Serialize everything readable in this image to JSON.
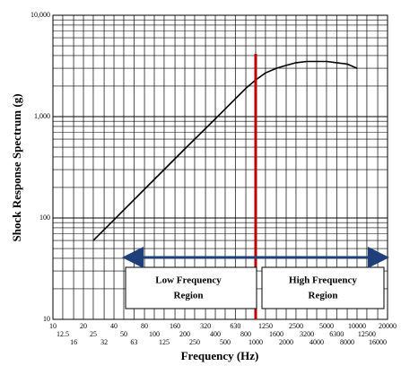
{
  "chart_data": {
    "type": "line",
    "x_label": "Frequency (Hz)",
    "y_label": "Shock Response Spectrum (g)",
    "x": [
      25,
      50,
      100,
      200,
      400,
      800,
      1000,
      1250,
      1600,
      2000,
      2500,
      3200,
      4000,
      5000,
      6300,
      8000,
      10000
    ],
    "series": [
      {
        "color": "#000000",
        "values": [
          60,
          120,
          240,
          480,
          950,
          1900,
          2300,
          2700,
          3000,
          3200,
          3400,
          3500,
          3500,
          3500,
          3400,
          3300,
          3000
        ]
      }
    ],
    "xlim": [
      10,
      20000
    ],
    "ylim": [
      10,
      10000
    ],
    "log_x": true,
    "log_y": true,
    "grid": true,
    "xticks": [
      10,
      12.5,
      16,
      20,
      25,
      32,
      40,
      50,
      63,
      80,
      100,
      125,
      160,
      200,
      250,
      320,
      400,
      500,
      630,
      800,
      1000,
      1250,
      1600,
      2000,
      2500,
      3200,
      4000,
      5000,
      6300,
      8000,
      10000,
      12500,
      16000,
      20000
    ],
    "yticks": [
      10,
      100,
      {
        "value": 1000,
        "label": "1,000"
      },
      {
        "value": 10000,
        "label": "10,000"
      }
    ],
    "vline": {
      "x": 1000,
      "color": "#c00000"
    },
    "annotations": {
      "low": [
        "Low Frequency",
        "Region"
      ],
      "high": [
        "High Frequency",
        "Region"
      ]
    }
  }
}
